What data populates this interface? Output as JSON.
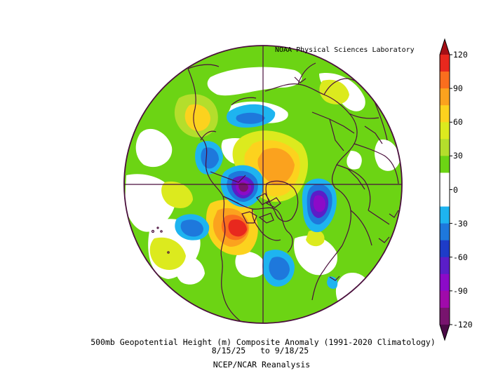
{
  "credit": "NOAA Physical Sciences Laboratory",
  "title": {
    "line1": "500mb Geopotential Height (m) Composite Anomaly (1991-2020 Climatology)",
    "line2": "8/15/25   to 9/18/25",
    "line3": "NCEP/NCAR Reanalysis"
  },
  "map": {
    "projection": "north-polar-stereographic",
    "field": "500mb geopotential height anomaly",
    "units": "m"
  },
  "colorbar": {
    "labels": [
      "120",
      "90",
      "60",
      "30",
      "0",
      "-30",
      "-60",
      "-90",
      "-120"
    ],
    "bins": [
      {
        "from": 105,
        "to": 120,
        "color": "#e8281e"
      },
      {
        "from": 90,
        "to": 105,
        "color": "#fa6e1e"
      },
      {
        "from": 75,
        "to": 90,
        "color": "#fba21e"
      },
      {
        "from": 60,
        "to": 75,
        "color": "#fcd21e"
      },
      {
        "from": 45,
        "to": 60,
        "color": "#dcea1e"
      },
      {
        "from": 30,
        "to": 45,
        "color": "#b4de2c"
      },
      {
        "from": 15,
        "to": 30,
        "color": "#6cd414"
      },
      {
        "from": 0,
        "to": 15,
        "color": "#ffffff"
      },
      {
        "from": -15,
        "to": 0,
        "color": "#ffffff"
      },
      {
        "from": -30,
        "to": -15,
        "color": "#1eb4f0"
      },
      {
        "from": -45,
        "to": -30,
        "color": "#1e78dc"
      },
      {
        "from": -60,
        "to": -45,
        "color": "#1e3cc8"
      },
      {
        "from": -75,
        "to": -60,
        "color": "#5a1ec8"
      },
      {
        "from": -90,
        "to": -75,
        "color": "#8c0ac8"
      },
      {
        "from": -105,
        "to": -90,
        "color": "#a00aaa"
      },
      {
        "from": -120,
        "to": -105,
        "color": "#78146e"
      }
    ],
    "top_arrow_color": "#a50f15",
    "bottom_arrow_color": "#4a0a46"
  },
  "colors": {
    "coastline": "#4a0f3c",
    "background_anomaly": "#6cd414"
  }
}
